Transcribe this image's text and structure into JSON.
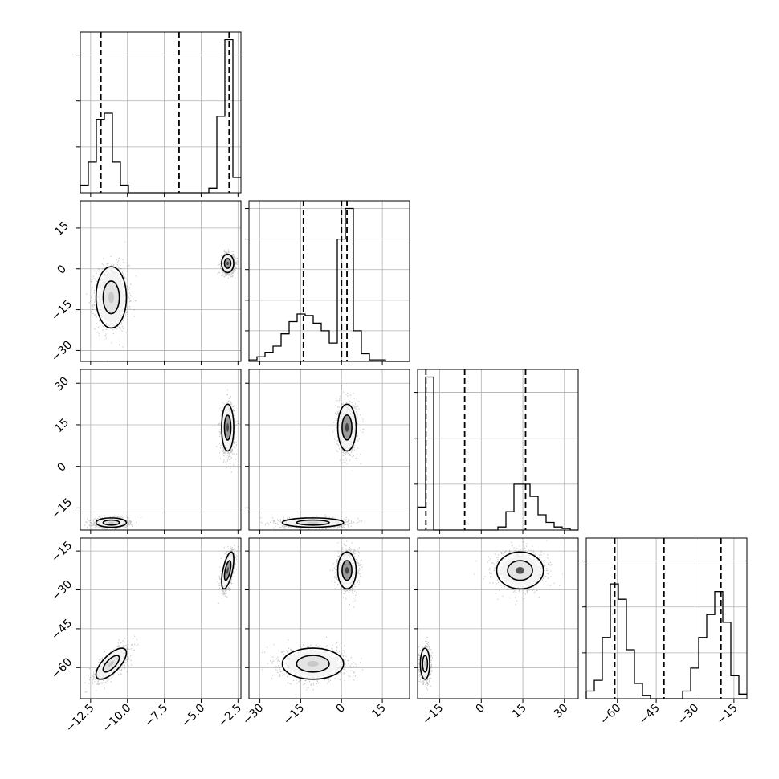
{
  "chart_data": {
    "type": "corner",
    "title": "",
    "legend": "none",
    "grid": true,
    "parameters": [
      {
        "name": "",
        "range": [
          -13.2,
          -2.3
        ],
        "ticks": [
          -12.5,
          -10.0,
          -7.5,
          -5.0,
          -2.5
        ],
        "tick_labels": [
          "−12.5",
          "−10.0",
          "−7.5",
          "−5.0",
          "−2.5"
        ],
        "quantiles": [
          -11.8,
          -6.5,
          -3.1
        ],
        "modes": [
          {
            "weight": 0.5,
            "mean": -11.1,
            "sd": 0.55
          },
          {
            "weight": 0.5,
            "mean": -3.2,
            "sd": 0.22
          }
        ]
      },
      {
        "name": "",
        "range": [
          -34,
          25
        ],
        "ticks": [
          -30,
          -15,
          0,
          15
        ],
        "tick_labels": [
          "−30",
          "−15",
          "0",
          "15"
        ],
        "quantiles": [
          -14,
          0,
          2
        ],
        "modes": [
          {
            "weight": 0.5,
            "mean": -10.5,
            "sd": 6.0
          },
          {
            "weight": 0.5,
            "mean": 2.0,
            "sd": 1.8
          }
        ]
      },
      {
        "name": "",
        "range": [
          -23,
          35
        ],
        "ticks": [
          -15,
          0,
          15,
          30
        ],
        "tick_labels": [
          "−15",
          "0",
          "15",
          "30"
        ],
        "quantiles": [
          -20,
          -6,
          16
        ],
        "modes": [
          {
            "weight": 0.5,
            "mean": -20.3,
            "sd": 0.9
          },
          {
            "weight": 0.5,
            "mean": 14.0,
            "sd": 4.5
          }
        ]
      },
      {
        "name": "",
        "range": [
          -72,
          -10
        ],
        "ticks": [
          -60,
          -45,
          -30,
          -15
        ],
        "tick_labels": [
          "−60",
          "−45",
          "−30",
          "−15"
        ],
        "quantiles": [
          -61,
          -42,
          -20
        ],
        "modes": [
          {
            "weight": 0.5,
            "mean": -58.5,
            "sd": 3.2
          },
          {
            "weight": 0.5,
            "mean": -22.5,
            "sd": 3.8
          }
        ]
      }
    ],
    "histograms": [
      {
        "parameter": 0,
        "bin_edges": [
          -13.2,
          -12.655,
          -12.11,
          -11.565,
          -11.02,
          -10.475,
          -9.93,
          -9.385,
          -8.84,
          -8.295,
          -7.75,
          -7.205,
          -6.66,
          -6.115,
          -5.57,
          -5.025,
          -4.48,
          -3.935,
          -3.39,
          -2.845,
          -2.3
        ],
        "counts": [
          0.05,
          0.2,
          0.48,
          0.52,
          0.2,
          0.05,
          0,
          0,
          0,
          0,
          0,
          0,
          0,
          0,
          0,
          0,
          0.03,
          0.5,
          1.0,
          0.1
        ],
        "ylim": [
          0,
          1.05
        ],
        "yticks": [
          0.3,
          0.6,
          0.9
        ]
      },
      {
        "parameter": 1,
        "bin_edges": [
          -34,
          -31.05,
          -28.1,
          -25.15,
          -22.2,
          -19.25,
          -16.3,
          -13.35,
          -10.4,
          -7.45,
          -4.5,
          -1.55,
          1.4,
          4.35,
          7.3,
          10.25,
          13.2,
          16.15,
          19.1,
          22.05,
          25
        ],
        "counts": [
          0.01,
          0.03,
          0.06,
          0.1,
          0.18,
          0.26,
          0.31,
          0.3,
          0.25,
          0.2,
          0.12,
          0.8,
          1.0,
          0.2,
          0.05,
          0.01,
          0.01,
          0,
          0,
          0
        ],
        "ylim": [
          0,
          1.05
        ],
        "yticks": [
          0.2,
          0.4,
          0.6,
          0.8,
          1.0
        ]
      },
      {
        "parameter": 2,
        "bin_edges": [
          -23,
          -20.1,
          -17.2,
          -14.3,
          -11.4,
          -8.5,
          -5.6,
          -2.7,
          0.2,
          3.1,
          6.0,
          8.9,
          11.8,
          14.7,
          17.6,
          20.5,
          23.4,
          26.3,
          29.2,
          32.1,
          35
        ],
        "counts": [
          0.15,
          1.0,
          0,
          0,
          0,
          0,
          0,
          0,
          0,
          0,
          0.02,
          0.12,
          0.3,
          0.3,
          0.22,
          0.1,
          0.05,
          0.02,
          0.01,
          0
        ],
        "ylim": [
          0,
          1.05
        ],
        "yticks": [
          0.3,
          0.6,
          0.9
        ]
      },
      {
        "parameter": 3,
        "bin_edges": [
          -72,
          -68.9,
          -65.8,
          -62.7,
          -59.6,
          -56.5,
          -53.4,
          -50.3,
          -47.2,
          -44.1,
          -41,
          -37.9,
          -34.8,
          -31.7,
          -28.6,
          -25.5,
          -22.4,
          -19.3,
          -16.2,
          -13.1,
          -10
        ],
        "counts": [
          0.05,
          0.12,
          0.4,
          0.75,
          0.65,
          0.32,
          0.1,
          0.02,
          0,
          0,
          0,
          0,
          0.05,
          0.2,
          0.4,
          0.55,
          0.7,
          0.5,
          0.15,
          0.03
        ],
        "ylim": [
          0,
          1.05
        ],
        "yticks": [
          0.3,
          0.6,
          0.9
        ]
      }
    ],
    "pairs": [
      {
        "x": 0,
        "y": 1,
        "modes": [
          {
            "mx": -11.1,
            "my": -10.5,
            "sx": 0.55,
            "sy": 6.0,
            "rho": 0
          },
          {
            "mx": -3.2,
            "my": 2.0,
            "sx": 0.22,
            "sy": 1.8,
            "rho": 0
          }
        ]
      },
      {
        "x": 0,
        "y": 2,
        "modes": [
          {
            "mx": -11.1,
            "my": -20.3,
            "sx": 0.55,
            "sy": 0.9,
            "rho": 0
          },
          {
            "mx": -3.2,
            "my": 14.0,
            "sx": 0.22,
            "sy": 4.5,
            "rho": 0
          }
        ]
      },
      {
        "x": 1,
        "y": 2,
        "modes": [
          {
            "mx": -10.5,
            "my": -20.3,
            "sx": 6.0,
            "sy": 0.9,
            "rho": 0
          },
          {
            "mx": 2.0,
            "my": 14.0,
            "sx": 1.8,
            "sy": 4.5,
            "rho": 0
          }
        ]
      },
      {
        "x": 0,
        "y": 3,
        "modes": [
          {
            "mx": -11.1,
            "my": -58.5,
            "sx": 0.55,
            "sy": 3.2,
            "rho": 0.7
          },
          {
            "mx": -3.2,
            "my": -22.5,
            "sx": 0.22,
            "sy": 3.8,
            "rho": 0.6
          }
        ]
      },
      {
        "x": 1,
        "y": 3,
        "modes": [
          {
            "mx": -10.5,
            "my": -58.5,
            "sx": 6.0,
            "sy": 3.2,
            "rho": 0
          },
          {
            "mx": 2.0,
            "my": -22.5,
            "sx": 1.8,
            "sy": 3.8,
            "rho": 0
          }
        ]
      },
      {
        "x": 2,
        "y": 3,
        "modes": [
          {
            "mx": -20.3,
            "my": -58.5,
            "sx": 0.9,
            "sy": 3.2,
            "rho": 0
          },
          {
            "mx": 14.0,
            "my": -22.5,
            "sx": 4.5,
            "sy": 3.8,
            "rho": 0
          }
        ]
      }
    ],
    "contour_levels_sigma": [
      1.0,
      1.5
    ]
  }
}
